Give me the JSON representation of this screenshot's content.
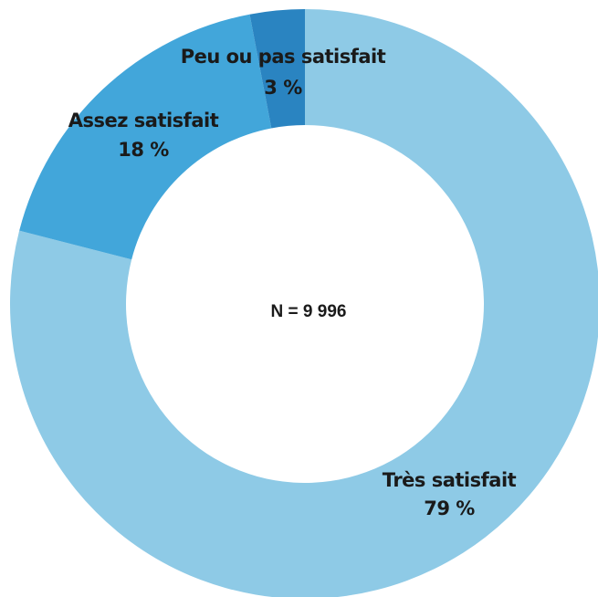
{
  "chart_data": {
    "type": "pie",
    "donut": true,
    "categories": [
      "Très satisfait",
      "Assez satisfait",
      "Peu ou pas satisfait"
    ],
    "values": [
      79,
      18,
      3
    ],
    "value_labels": [
      "79 %",
      "18 %",
      "3 %"
    ],
    "colors": [
      "#8ecae6",
      "#42a6da",
      "#2a84c1"
    ],
    "annotation": "N = 9 996"
  }
}
